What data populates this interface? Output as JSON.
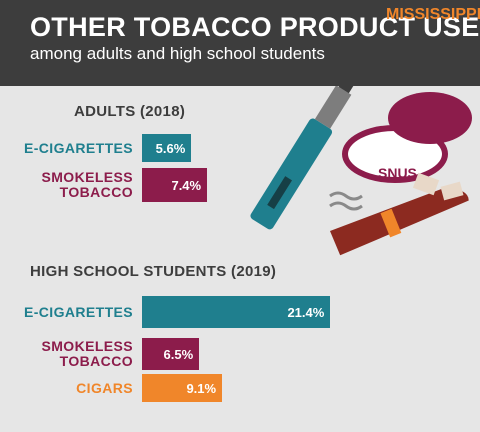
{
  "header": {
    "title": "OTHER TOBACCO PRODUCT USE",
    "subtitle": "among adults and high school students",
    "state": "MISSISSIPPI"
  },
  "chart_data": [
    {
      "type": "bar",
      "title": "ADULTS (2018)",
      "categories": [
        "E-CIGARETTES",
        "SMOKELESS TOBACCO"
      ],
      "values": [
        5.6,
        7.4
      ],
      "value_labels": [
        "5.6%",
        "7.4%"
      ],
      "colors": [
        "#1f7f8e",
        "#8c1c4b"
      ]
    },
    {
      "type": "bar",
      "title": "HIGH SCHOOL STUDENTS (2019)",
      "categories": [
        "E-CIGARETTES",
        "SMOKELESS TOBACCO",
        "CIGARS"
      ],
      "values": [
        21.4,
        6.5,
        9.1
      ],
      "value_labels": [
        "21.4%",
        "6.5%",
        "9.1%"
      ],
      "colors": [
        "#1f7f8e",
        "#8c1c4b",
        "#f0862a"
      ]
    }
  ]
}
